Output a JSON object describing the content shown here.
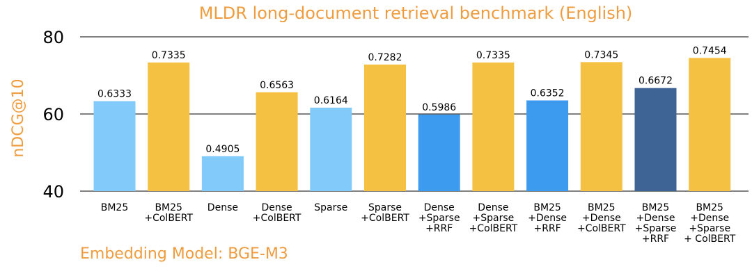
{
  "chart_data": {
    "type": "bar",
    "title": "MLDR long-document retrieval benchmark (English)",
    "ylabel": "nDCG@10",
    "xlabel": "",
    "ylim": [
      40,
      83
    ],
    "yticks": [
      40,
      60,
      80
    ],
    "grid": true,
    "categories": [
      [
        "BM25"
      ],
      [
        "BM25",
        "+ColBERT"
      ],
      [
        "Dense"
      ],
      [
        "Dense",
        "+ColBERT"
      ],
      [
        "Sparse"
      ],
      [
        "Sparse",
        "+ColBERT"
      ],
      [
        "Dense",
        "+Sparse",
        "+RRF"
      ],
      [
        "Dense",
        "+Sparse",
        "+ColBERT"
      ],
      [
        "BM25",
        "+Dense",
        "+RRF"
      ],
      [
        "BM25",
        "+Dense",
        "+ColBERT"
      ],
      [
        "BM25",
        "+Dense",
        "+Sparse",
        "+RRF"
      ],
      [
        "BM25",
        "+Dense",
        "+Sparse",
        "+ ColBERT"
      ]
    ],
    "values": [
      63.33,
      73.35,
      49.05,
      65.63,
      61.64,
      72.82,
      59.86,
      73.35,
      63.52,
      73.45,
      66.72,
      74.54
    ],
    "value_labels": [
      "0.6333",
      "0.7335",
      "0.4905",
      "0.6563",
      "0.6164",
      "0.7282",
      "0.5986",
      "0.7335",
      "0.6352",
      "0.7345",
      "0.6672",
      "0.7454"
    ],
    "bar_colors": [
      "#82cafa",
      "#f4c143",
      "#82cafa",
      "#f4c143",
      "#82cafa",
      "#f4c143",
      "#3d9bef",
      "#f4c143",
      "#3d9bef",
      "#f4c143",
      "#3e6395",
      "#f4c143"
    ]
  },
  "footnote": "Embedding Model: BGE-M3",
  "colors": {
    "accent": "#ee9c3e",
    "axis": "#000000",
    "grid": "#000000"
  }
}
